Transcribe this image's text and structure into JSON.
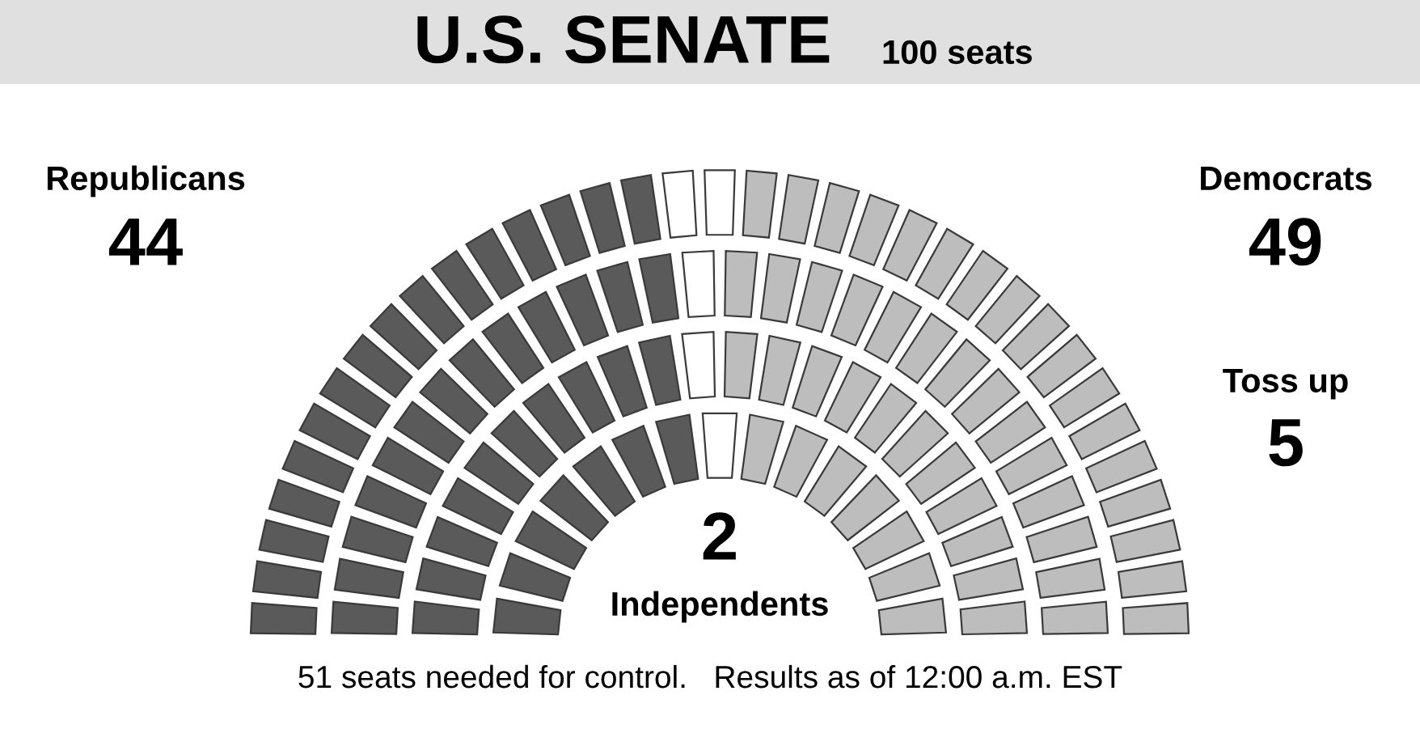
{
  "chart_data": {
    "type": "other",
    "title": "U.S. SENATE",
    "subtitle": "100 seats",
    "categories": [
      "Republicans",
      "Independents",
      "Toss up",
      "Democrats"
    ],
    "values": [
      44,
      2,
      5,
      49
    ],
    "value_labels": [
      "44",
      "2",
      "5",
      "49"
    ],
    "colors": [
      "#5a5a5a",
      "#5a5a5a",
      "#ffffff",
      "#bdbdbd"
    ],
    "annotations": [
      "51 seats needed for control.   Results as of 12:00 a.m. EST"
    ]
  }
}
